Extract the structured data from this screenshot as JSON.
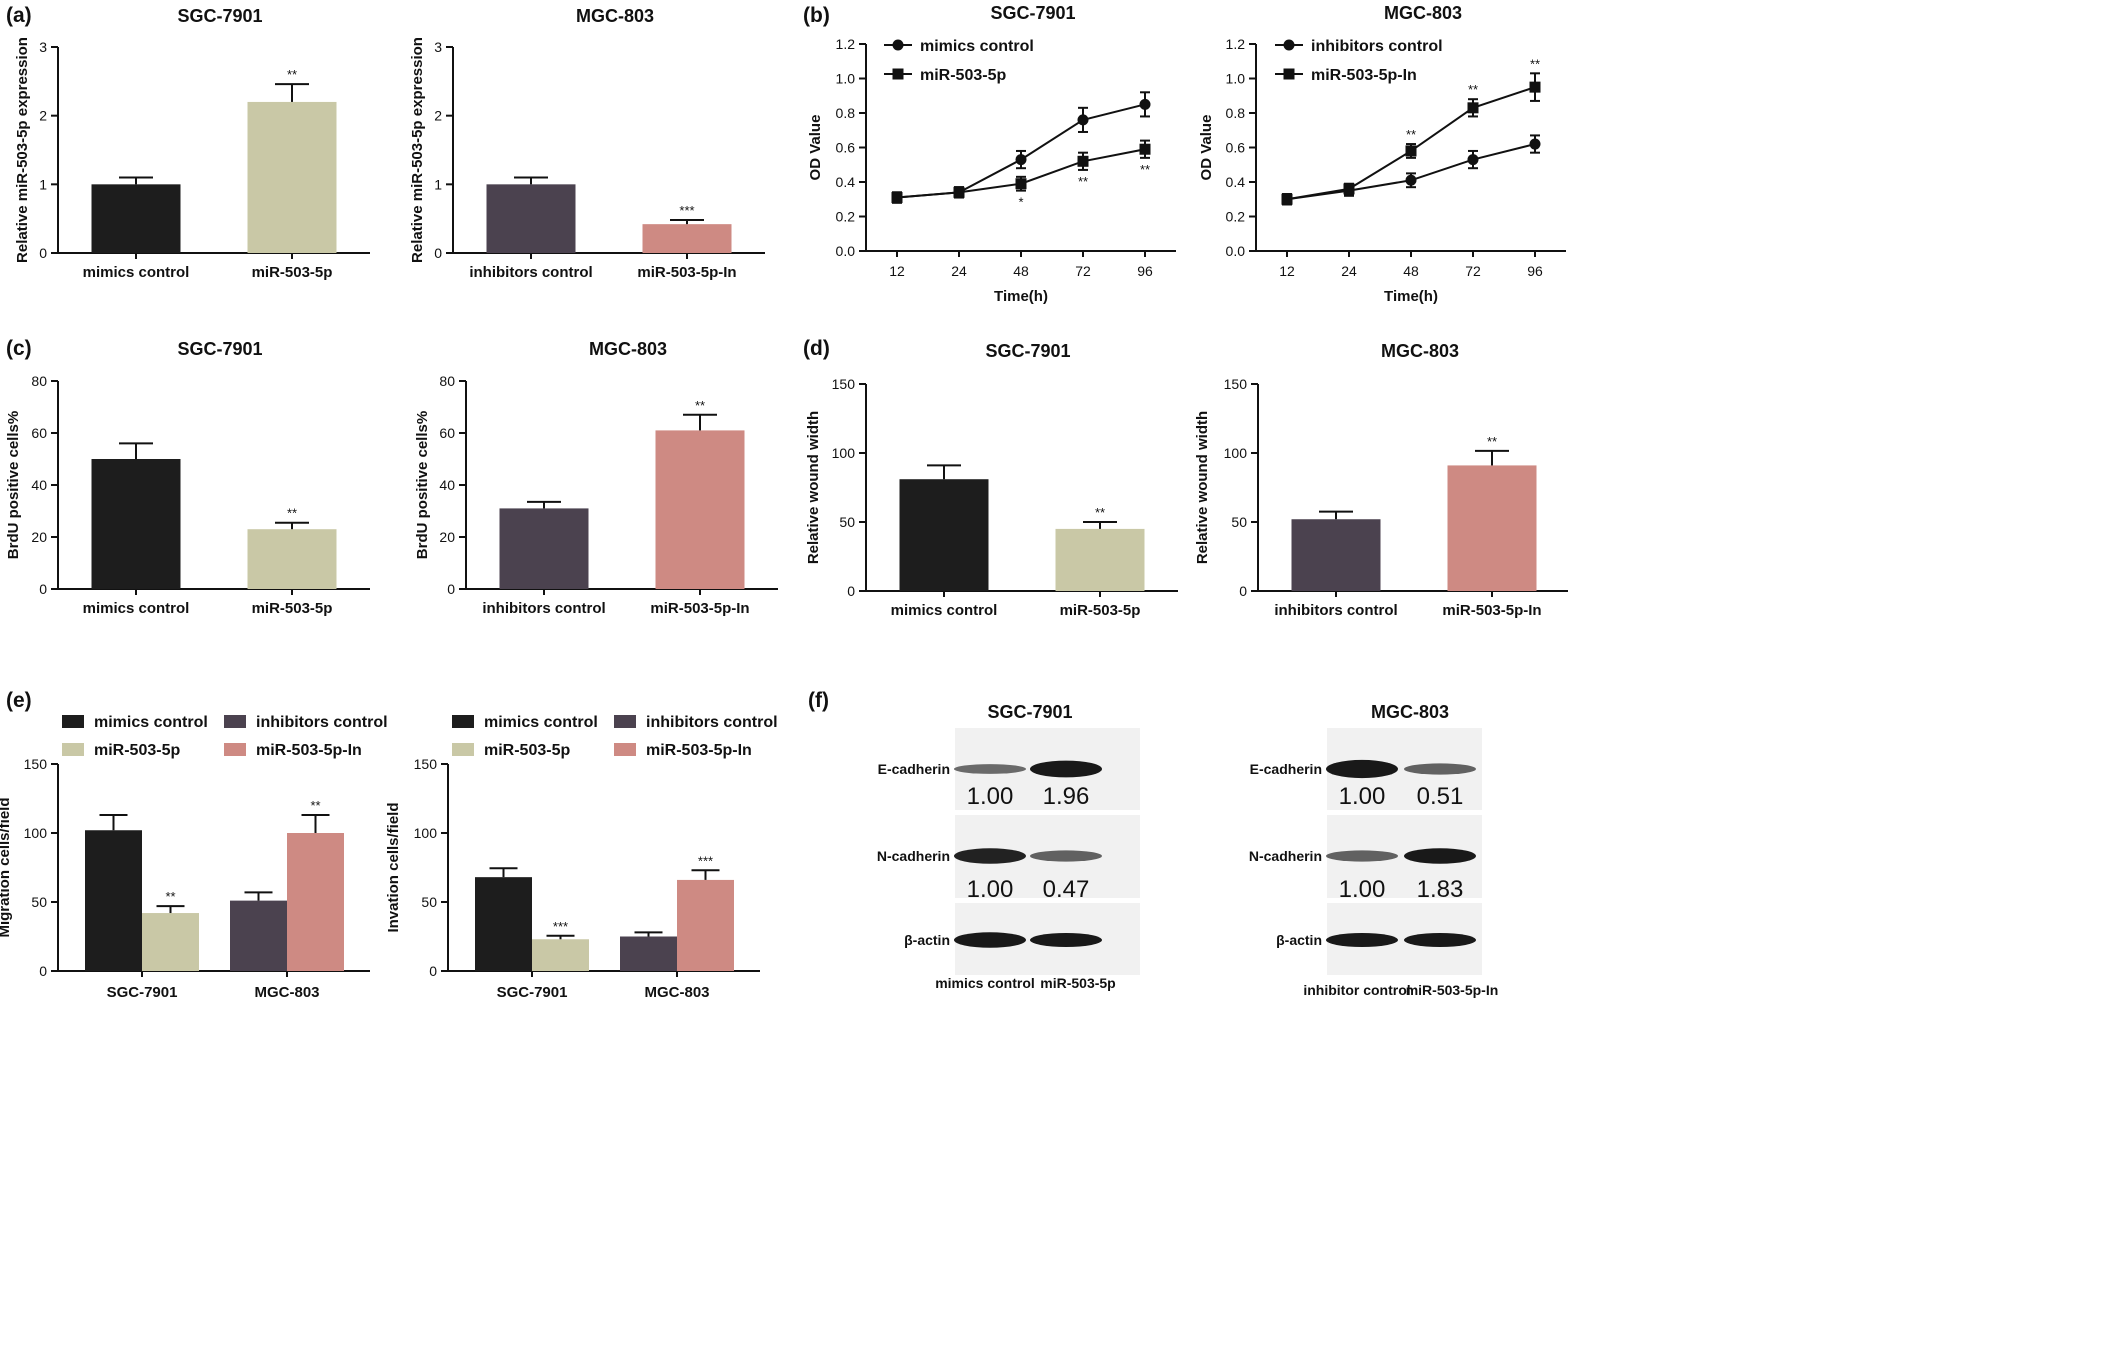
{
  "colors": {
    "black": "#1d1d1d",
    "beige": "#c9c8a6",
    "slate": "#4b424f",
    "pink": "#ce8a83"
  },
  "panel_labels": {
    "a": "(a)",
    "b": "(b)",
    "c": "(c)",
    "d": "(d)",
    "e": "(e)",
    "f": "(f)"
  },
  "chart_data": [
    {
      "id": "a1",
      "type": "bar",
      "title": "SGC-7901",
      "ylabel": "Relative miR-503-5p expression",
      "ylim": [
        0,
        3
      ],
      "yticks": [
        0,
        1,
        2,
        3
      ],
      "categories": [
        "mimics control",
        "miR-503-5p"
      ],
      "values": [
        1.0,
        2.2
      ],
      "errors": [
        0.1,
        0.26
      ],
      "sig": [
        "",
        "**"
      ],
      "bar_colors": [
        "black",
        "beige"
      ]
    },
    {
      "id": "a2",
      "type": "bar",
      "title": "MGC-803",
      "ylabel": "Relative miR-503-5p expression",
      "ylim": [
        0,
        3
      ],
      "yticks": [
        0,
        1,
        2,
        3
      ],
      "categories": [
        "inhibitors control",
        "miR-503-5p-In"
      ],
      "values": [
        1.0,
        0.42
      ],
      "errors": [
        0.1,
        0.06
      ],
      "sig": [
        "",
        "***"
      ],
      "bar_colors": [
        "slate",
        "pink"
      ]
    },
    {
      "id": "b1",
      "type": "line",
      "title": "SGC-7901",
      "xlabel": "Time(h)",
      "ylabel": "OD Value",
      "ylim": [
        0,
        1.2
      ],
      "yticks": [
        0.0,
        0.2,
        0.4,
        0.6,
        0.8,
        1.0,
        1.2
      ],
      "ytick_labels": [
        "0.0",
        "0.2",
        "0.4",
        "0.6",
        "0.8",
        "1.0",
        "1.2"
      ],
      "x": [
        12,
        24,
        48,
        72,
        96
      ],
      "series": [
        {
          "name": "mimics control",
          "marker": "circle",
          "values": [
            0.31,
            0.34,
            0.53,
            0.76,
            0.85
          ],
          "errors": [
            0.03,
            0.03,
            0.05,
            0.07,
            0.07
          ],
          "sig": [
            "",
            "",
            "",
            "",
            ""
          ]
        },
        {
          "name": "miR-503-5p",
          "marker": "square",
          "values": [
            0.31,
            0.34,
            0.39,
            0.52,
            0.59
          ],
          "errors": [
            0.03,
            0.03,
            0.04,
            0.05,
            0.05
          ],
          "sig": [
            "",
            "",
            "*",
            "**",
            "**"
          ]
        }
      ]
    },
    {
      "id": "b2",
      "type": "line",
      "title": "MGC-803",
      "xlabel": "Time(h)",
      "ylabel": "OD Value",
      "ylim": [
        0,
        1.2
      ],
      "yticks": [
        0.0,
        0.2,
        0.4,
        0.6,
        0.8,
        1.0,
        1.2
      ],
      "ytick_labels": [
        "0.0",
        "0.2",
        "0.4",
        "0.6",
        "0.8",
        "1.0",
        "1.2"
      ],
      "x": [
        12,
        24,
        48,
        72,
        96
      ],
      "series": [
        {
          "name": "inhibitors control",
          "marker": "circle",
          "values": [
            0.3,
            0.35,
            0.41,
            0.53,
            0.62
          ],
          "errors": [
            0.03,
            0.03,
            0.04,
            0.05,
            0.05
          ],
          "sig": [
            "",
            "",
            "",
            "",
            ""
          ]
        },
        {
          "name": "miR-503-5p-In",
          "marker": "square",
          "values": [
            0.3,
            0.36,
            0.58,
            0.83,
            0.95
          ],
          "errors": [
            0.03,
            0.03,
            0.04,
            0.05,
            0.08
          ],
          "sig": [
            "",
            "",
            "**",
            "**",
            "**"
          ]
        }
      ]
    },
    {
      "id": "c1",
      "type": "bar",
      "title": "SGC-7901",
      "ylabel": "BrdU positive cells%",
      "ylim": [
        0,
        80
      ],
      "yticks": [
        0,
        20,
        40,
        60,
        80
      ],
      "categories": [
        "mimics control",
        "miR-503-5p"
      ],
      "values": [
        50,
        23
      ],
      "errors": [
        6,
        2.5
      ],
      "sig": [
        "",
        "**"
      ],
      "bar_colors": [
        "black",
        "beige"
      ]
    },
    {
      "id": "c2",
      "type": "bar",
      "title": "MGC-803",
      "ylabel": "BrdU positive cells%",
      "ylim": [
        0,
        80
      ],
      "yticks": [
        0,
        20,
        40,
        60,
        80
      ],
      "categories": [
        "inhibitors control",
        "miR-503-5p-In"
      ],
      "values": [
        31,
        61
      ],
      "errors": [
        2.5,
        6
      ],
      "sig": [
        "",
        "**"
      ],
      "bar_colors": [
        "slate",
        "pink"
      ]
    },
    {
      "id": "d1",
      "type": "bar",
      "title": "SGC-7901",
      "ylabel": "Relative wound width",
      "ylim": [
        0,
        150
      ],
      "yticks": [
        0,
        50,
        100,
        150
      ],
      "categories": [
        "mimics control",
        "miR-503-5p"
      ],
      "values": [
        81,
        45
      ],
      "errors": [
        10,
        5
      ],
      "sig": [
        "",
        "**"
      ],
      "bar_colors": [
        "black",
        "beige"
      ]
    },
    {
      "id": "d2",
      "type": "bar",
      "title": "MGC-803",
      "ylabel": "Relative wound width",
      "ylim": [
        0,
        150
      ],
      "yticks": [
        0,
        50,
        100,
        150
      ],
      "categories": [
        "inhibitors control",
        "miR-503-5p-In"
      ],
      "values": [
        52,
        91
      ],
      "errors": [
        5.5,
        10.5
      ],
      "sig": [
        "",
        "**"
      ],
      "bar_colors": [
        "slate",
        "pink"
      ]
    },
    {
      "id": "e1",
      "type": "grouped_bar",
      "ylabel": "Migration cells/field",
      "ylim": [
        0,
        150
      ],
      "yticks": [
        0,
        50,
        100,
        150
      ],
      "categories": [
        "SGC-7901",
        "MGC-803"
      ],
      "legend": [
        "mimics control",
        "inhibitors control",
        "miR-503-5p",
        "miR-503-5p-In"
      ],
      "legend_colors": [
        "black",
        "slate",
        "beige",
        "pink"
      ],
      "bars": [
        {
          "category": "SGC-7901",
          "series": "mimics control",
          "color": "black",
          "value": 102,
          "error": 11,
          "sig": ""
        },
        {
          "category": "SGC-7901",
          "series": "miR-503-5p",
          "color": "beige",
          "value": 42,
          "error": 5,
          "sig": "**"
        },
        {
          "category": "MGC-803",
          "series": "inhibitors control",
          "color": "slate",
          "value": 51,
          "error": 6,
          "sig": ""
        },
        {
          "category": "MGC-803",
          "series": "miR-503-5p-In",
          "color": "pink",
          "value": 100,
          "error": 13,
          "sig": "**"
        }
      ]
    },
    {
      "id": "e2",
      "type": "grouped_bar",
      "ylabel": "Invation cells/field",
      "ylim": [
        0,
        150
      ],
      "yticks": [
        0,
        50,
        100,
        150
      ],
      "categories": [
        "SGC-7901",
        "MGC-803"
      ],
      "legend": [
        "mimics control",
        "inhibitors control",
        "miR-503-5p",
        "miR-503-5p-In"
      ],
      "legend_colors": [
        "black",
        "slate",
        "beige",
        "pink"
      ],
      "bars": [
        {
          "category": "SGC-7901",
          "series": "mimics control",
          "color": "black",
          "value": 68,
          "error": 6.5,
          "sig": ""
        },
        {
          "category": "SGC-7901",
          "series": "miR-503-5p",
          "color": "beige",
          "value": 23,
          "error": 2.5,
          "sig": "***"
        },
        {
          "category": "MGC-803",
          "series": "inhibitors control",
          "color": "slate",
          "value": 25,
          "error": 3,
          "sig": ""
        },
        {
          "category": "MGC-803",
          "series": "miR-503-5p-In",
          "color": "pink",
          "value": 66,
          "error": 7,
          "sig": "***"
        }
      ]
    }
  ],
  "western_blots": [
    {
      "id": "f1",
      "title": "SGC-7901",
      "lanes": [
        "mimics control",
        "miR-503-5p"
      ],
      "rows": [
        {
          "label": "E-cadherin",
          "values": [
            "1.00",
            "1.96"
          ],
          "intensity": [
            0.55,
            1.0
          ],
          "thickness": [
            0.7,
            1.2
          ]
        },
        {
          "label": "N-cadherin",
          "values": [
            "1.00",
            "0.47"
          ],
          "intensity": [
            0.95,
            0.6
          ],
          "thickness": [
            1.1,
            0.8
          ]
        },
        {
          "label": "β-actin",
          "values": [],
          "intensity": [
            1.0,
            1.0
          ],
          "thickness": [
            1.1,
            1.0
          ]
        }
      ]
    },
    {
      "id": "f2",
      "title": "MGC-803",
      "lanes": [
        "inhibitor control",
        "miR-503-5p-In"
      ],
      "rows": [
        {
          "label": "E-cadherin",
          "values": [
            "1.00",
            "0.51"
          ],
          "intensity": [
            1.0,
            0.6
          ],
          "thickness": [
            1.3,
            0.8
          ]
        },
        {
          "label": "N-cadherin",
          "values": [
            "1.00",
            "1.83"
          ],
          "intensity": [
            0.6,
            1.0
          ],
          "thickness": [
            0.8,
            1.1
          ]
        },
        {
          "label": "β-actin",
          "values": [],
          "intensity": [
            1.0,
            1.0
          ],
          "thickness": [
            1.0,
            1.0
          ]
        }
      ]
    }
  ]
}
